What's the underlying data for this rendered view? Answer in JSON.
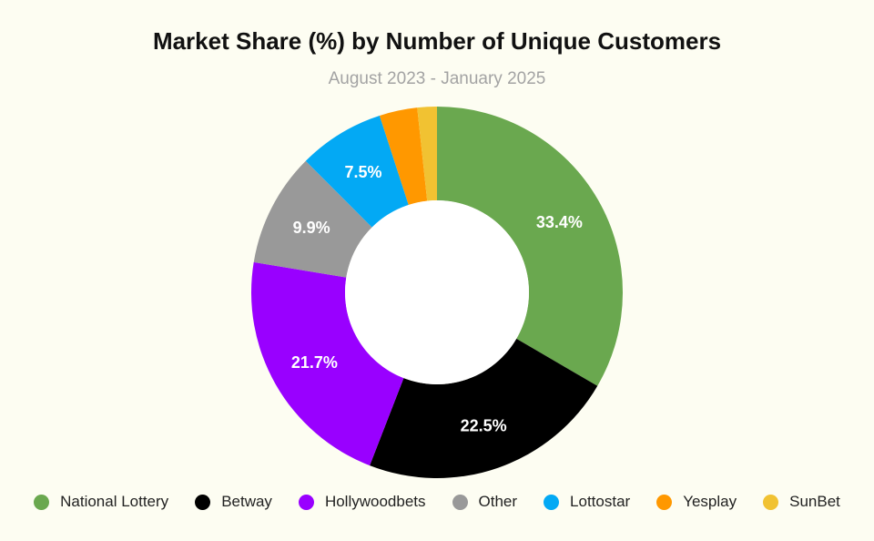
{
  "chart_data": {
    "type": "pie",
    "variant": "donut",
    "title": "Market Share (%) by Number of Unique Customers",
    "subtitle": "August 2023 - January 2025",
    "legend_position": "bottom",
    "categories": [
      "National Lottery",
      "Betway",
      "Hollywoodbets",
      "Other",
      "Lottostar",
      "Yesplay",
      "SunBet"
    ],
    "values": [
      33.4,
      22.5,
      21.7,
      9.9,
      7.5,
      3.3,
      1.7
    ],
    "labels": [
      "33.4%",
      "22.5%",
      "21.7%",
      "9.9%",
      "7.5%",
      "",
      ""
    ],
    "colors": [
      "#6aa84f",
      "#000000",
      "#9900ff",
      "#999999",
      "#03a9f4",
      "#ff9800",
      "#f1c232"
    ]
  }
}
